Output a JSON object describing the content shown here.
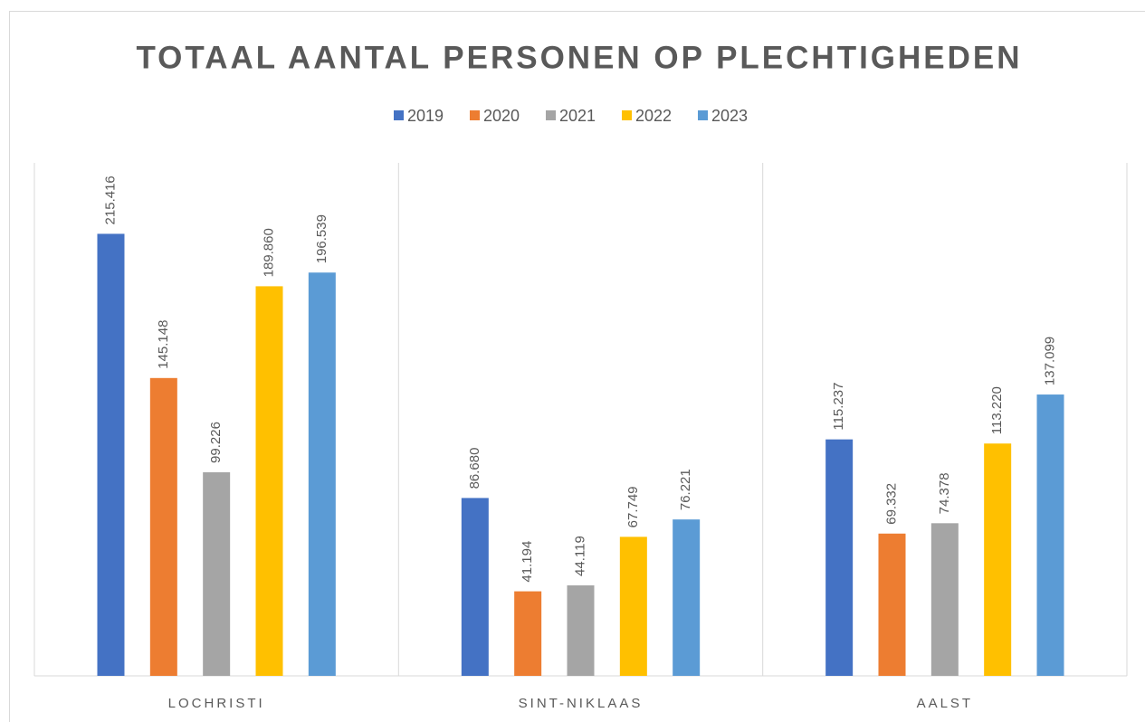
{
  "chart_data": {
    "type": "bar",
    "title": "TOTAAL AANTAL PERSONEN OP PLECHTIGHEDEN",
    "categories": [
      "LOCHRISTI",
      "SINT-NIKLAAS",
      "AALST"
    ],
    "series": [
      {
        "name": "2019",
        "color": "#4472c4",
        "values": [
          215416,
          86680,
          115237
        ],
        "value_labels": [
          "215.416",
          "86.680",
          "115.237"
        ]
      },
      {
        "name": "2020",
        "color": "#ed7d31",
        "values": [
          145148,
          41194,
          69332
        ],
        "value_labels": [
          "145.148",
          "41.194",
          "69.332"
        ]
      },
      {
        "name": "2021",
        "color": "#a5a5a5",
        "values": [
          99226,
          44119,
          74378
        ],
        "value_labels": [
          "99.226",
          "44.119",
          "74.378"
        ]
      },
      {
        "name": "2022",
        "color": "#ffc000",
        "values": [
          189860,
          67749,
          113220
        ],
        "value_labels": [
          "189.860",
          "67.749",
          "113.220"
        ]
      },
      {
        "name": "2023",
        "color": "#5b9bd5",
        "values": [
          196539,
          76221,
          137099
        ],
        "value_labels": [
          "196.539",
          "76.221",
          "137.099"
        ]
      }
    ],
    "ylim": [
      0,
      250000
    ],
    "legend": "top"
  }
}
